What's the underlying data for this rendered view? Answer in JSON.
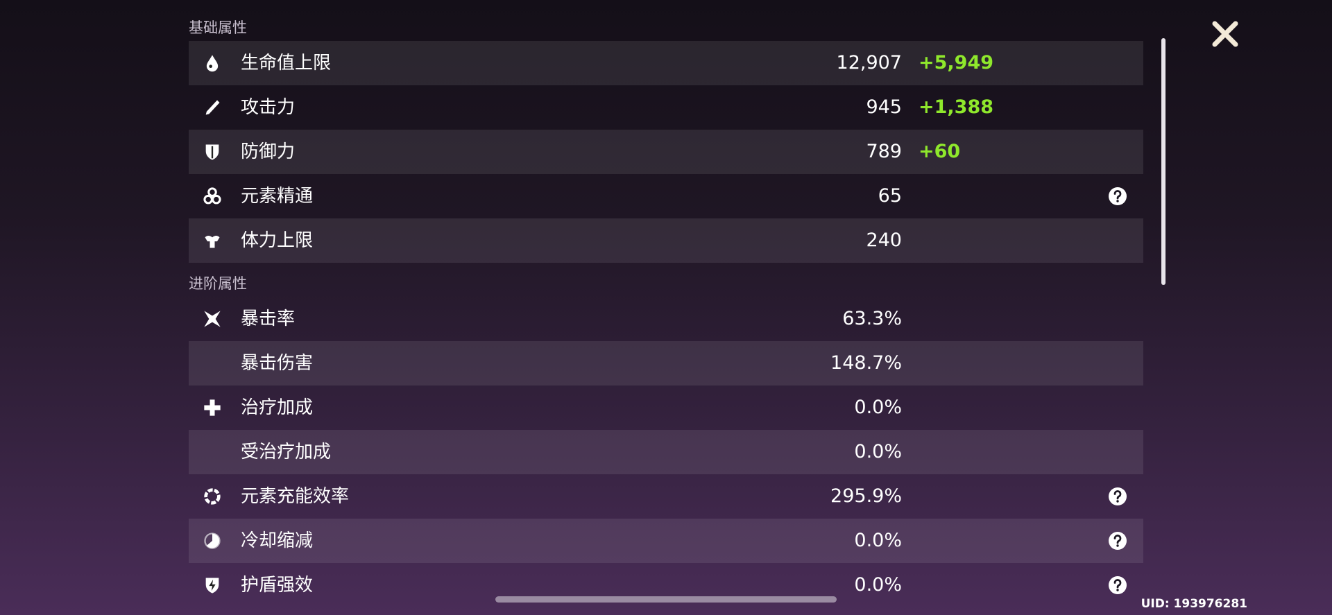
{
  "sections": [
    {
      "title": "基础属性",
      "rows": [
        {
          "label": "生命值上限",
          "value": "12,907",
          "bonus": "+5,949"
        },
        {
          "label": "攻击力",
          "value": "945",
          "bonus": "+1,388"
        },
        {
          "label": "防御力",
          "value": "789",
          "bonus": "+60"
        },
        {
          "label": "元素精通",
          "value": "65",
          "help": true
        },
        {
          "label": "体力上限",
          "value": "240"
        }
      ]
    },
    {
      "title": "进阶属性",
      "rows": [
        {
          "label": "暴击率",
          "value": "63.3%"
        },
        {
          "label": "暴击伤害",
          "value": "148.7%"
        },
        {
          "label": "治疗加成",
          "value": "0.0%"
        },
        {
          "label": "受治疗加成",
          "value": "0.0%"
        },
        {
          "label": "元素充能效率",
          "value": "295.9%",
          "help": true
        },
        {
          "label": "冷却缩减",
          "value": "0.0%",
          "help": true
        },
        {
          "label": "护盾强效",
          "value": "0.0%",
          "help": true
        }
      ]
    }
  ],
  "uid": "UID: 193976281"
}
